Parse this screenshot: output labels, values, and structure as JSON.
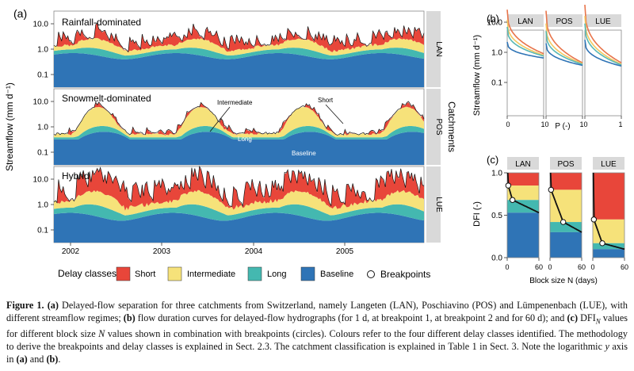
{
  "panel_a": {
    "label": "(a)",
    "ylabel": "Streamflow (mm d⁻¹)",
    "catchments_label": "Catchments",
    "yticks": [
      "10.0",
      "1.0",
      "0.1"
    ],
    "xticks": [
      "2002",
      "2003",
      "2004",
      "2005"
    ],
    "rows": [
      {
        "title": "Rainfall-dominated",
        "strip": "LAN"
      },
      {
        "title": "Snowmelt-dominated",
        "strip": "POS"
      },
      {
        "title": "Hybrid",
        "strip": "LUE"
      }
    ],
    "annotations": {
      "intermediate": "Intermediate",
      "short": "Short",
      "long": "Long",
      "baseline": "Baseline"
    }
  },
  "panel_b": {
    "label": "(b)",
    "strips": [
      "LAN",
      "POS",
      "LUE"
    ],
    "ylabel": "Streamflow (mm d⁻¹)",
    "xlabel": "P (-)",
    "yticks": [
      "10.0",
      "1.0",
      "0.1"
    ],
    "xticks": [
      "0",
      "1"
    ]
  },
  "panel_c": {
    "label": "(c)",
    "strips": [
      "LAN",
      "POS",
      "LUE"
    ],
    "ylabel": "DFI (-)",
    "xlabel": "Block size N (days)",
    "yticks": [
      "1.0",
      "0.5",
      "0.0"
    ],
    "xticks": [
      "0",
      "60"
    ]
  },
  "legend": {
    "title": "Delay classes",
    "items": [
      "Short",
      "Intermediate",
      "Long",
      "Baseline"
    ],
    "breakpoints": "Breakpoints"
  },
  "colors": {
    "short": "#e8463a",
    "intermediate": "#f6e27a",
    "long": "#44b8b0",
    "baseline": "#2f74b6",
    "strip": "#d9d9d9"
  },
  "caption": {
    "fig": "Figure 1.",
    "a_lbl": "(a)",
    "a_txt": " Delayed-flow separation for three catchments from Switzerland, namely Langeten (LAN), Poschiavino (POS) and Lümpenenbach (LUE), with different streamflow regimes; ",
    "b_lbl": "(b)",
    "b_txt": " flow duration curves for delayed-flow hydrographs (for 1 d, at breakpoint 1, at breakpoint 2 and for 60 d); and ",
    "c_lbl": "(c)",
    "c_txt1": " DFI",
    "c_sub": "N",
    "c_txt2": " values for different block size ",
    "c_n": "N",
    "c_txt3": " values shown in combination with breakpoints (circles). Colours refer to the four different delay classes identified. The methodology to derive the breakpoints and delay classes is explained in Sect. 2.3. The catchment classification is explained in Table 1 in Sect. 3. Note the logarithmic ",
    "c_y": "y",
    "c_txt4": " axis in ",
    "c_a": "(a)",
    "c_and": " and ",
    "c_b": "(b)",
    "c_end": "."
  }
}
